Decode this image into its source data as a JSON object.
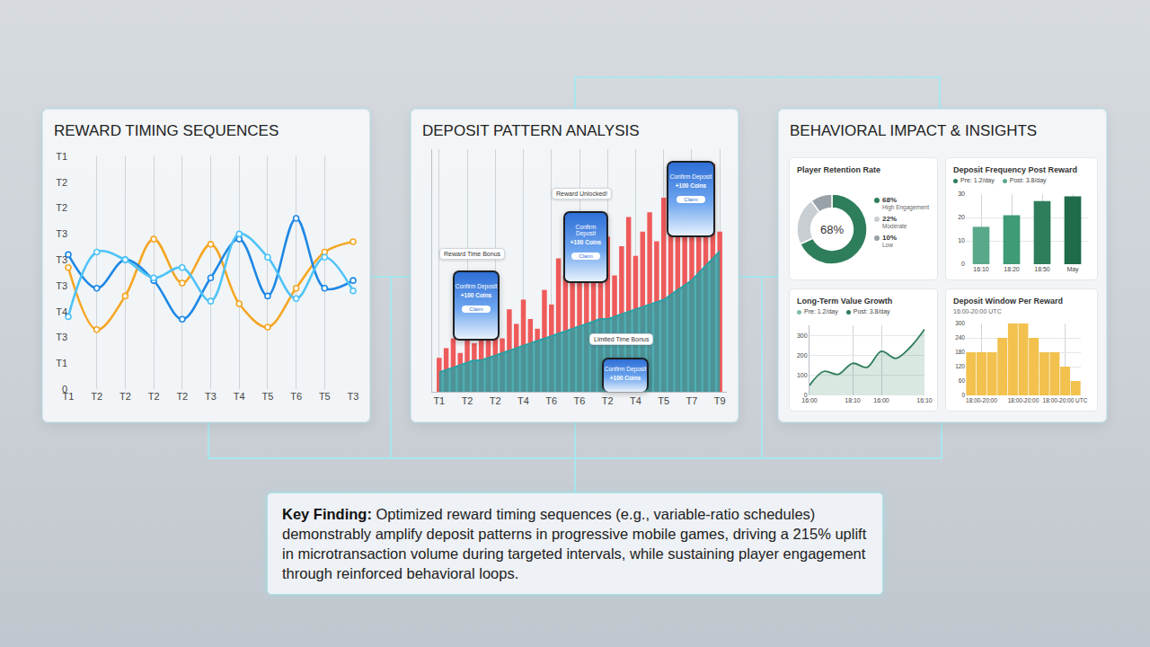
{
  "panels": [
    {
      "title": "REWARD TIMING SEQUENCES"
    },
    {
      "title": "DEPOSIT PATTERN ANALYSIS"
    },
    {
      "title": "BEHAVIORAL IMPACT & INSIGHTS"
    }
  ],
  "key_finding": {
    "label": "Key Finding:",
    "text": "Optimized reward timing sequences (e.g., variable-ratio schedules) demonstrably amplify deposit patterns in progressive mobile games, driving a 215% uplift in microtransaction volume during targeted intervals, while sustaining player engagement through reinforced behavioral loops."
  },
  "chart_data": [
    {
      "type": "line",
      "categories": [
        "T1",
        "T2",
        "T2",
        "T2",
        "T2",
        "T3",
        "T4",
        "T5",
        "T6",
        "T5",
        "T3"
      ],
      "series": [
        {
          "color": "#f5a623",
          "marker": "circle",
          "values": [
            4.7,
            2.3,
            3.6,
            5.8,
            4.1,
            5.6,
            3.3,
            2.4,
            3.9,
            5.3,
            5.7
          ]
        },
        {
          "color": "#1e88e5",
          "marker": "circle",
          "values": [
            5.2,
            3.9,
            5.0,
            4.2,
            2.7,
            4.3,
            5.8,
            3.6,
            6.6,
            3.9,
            4.2
          ]
        },
        {
          "color": "#4fc3f7",
          "marker": "circle",
          "values": [
            2.8,
            5.3,
            5.0,
            4.3,
            4.7,
            3.4,
            6.0,
            5.1,
            3.5,
            5.1,
            3.8
          ]
        }
      ],
      "ylim": [
        0,
        9
      ],
      "yticks": [
        0,
        {
          "value": 1,
          "label": "T1"
        },
        {
          "value": 2,
          "label": "T3"
        },
        {
          "value": 3,
          "label": "T4"
        },
        {
          "value": 4,
          "label": "T3"
        },
        {
          "value": 5,
          "label": "T3"
        },
        {
          "value": 6,
          "label": "T3"
        },
        {
          "value": 7,
          "label": "T2"
        },
        {
          "value": 8,
          "label": "T2"
        },
        {
          "value": 9,
          "label": "T1"
        }
      ],
      "grid": "x"
    },
    {
      "type": "bar",
      "x": [
        1,
        2,
        3,
        4,
        5,
        6,
        7,
        8,
        9,
        10,
        11,
        12,
        13,
        14,
        15,
        16,
        17,
        18,
        19,
        20,
        21,
        22,
        23,
        24,
        25,
        26,
        27,
        28,
        29,
        30,
        31,
        32,
        33,
        34,
        35,
        36,
        37,
        38,
        39,
        40,
        41
      ],
      "xlim": [
        0,
        42
      ],
      "xticks": [
        {
          "value": 1,
          "label": "T1"
        },
        {
          "value": 5,
          "label": "T2"
        },
        {
          "value": 9,
          "label": "T2"
        },
        {
          "value": 13,
          "label": "T4"
        },
        {
          "value": 17,
          "label": "T6"
        },
        {
          "value": 21,
          "label": "T6"
        },
        {
          "value": 25,
          "label": "T2"
        },
        {
          "value": 29,
          "label": "T4"
        },
        {
          "value": 33,
          "label": "T5"
        },
        {
          "value": 37,
          "label": "T7"
        },
        {
          "value": 41,
          "label": "T9"
        }
      ],
      "ylim": [
        0,
        100
      ],
      "tick_labels": "x",
      "grid": "x",
      "series": [
        {
          "type": "bar",
          "color": "#ef5a5a",
          "values": [
            14,
            18,
            22,
            16,
            25,
            20,
            28,
            24,
            30,
            22,
            34,
            28,
            38,
            30,
            26,
            42,
            36,
            55,
            48,
            62,
            45,
            58,
            70,
            52,
            64,
            48,
            60,
            72,
            56,
            66,
            74,
            62,
            80,
            68,
            76,
            85,
            72,
            90,
            78,
            94,
            66
          ]
        },
        {
          "type": "area",
          "color": "#2a9fa3",
          "values": [
            8,
            9,
            10,
            11,
            12,
            13,
            13,
            14,
            15,
            16,
            17,
            18,
            19,
            20,
            21,
            22,
            23,
            24,
            25,
            26,
            27,
            28,
            29,
            30,
            30,
            31,
            32,
            33,
            34,
            35,
            36,
            37,
            38,
            40,
            42,
            44,
            46,
            49,
            52,
            55,
            58
          ]
        }
      ],
      "annotations": [
        {
          "text": "Reward Time Bonus"
        },
        {
          "text": "Reward Unlocked!"
        },
        {
          "text": "Limited Time Bonus"
        }
      ],
      "phones": [
        {
          "heading": "Confirm Deposit",
          "amount": "+100 Coins",
          "button": "Claim"
        },
        {
          "heading": "Confirm Deposit",
          "amount": "+100 Coins",
          "button": "Claim"
        },
        {
          "heading": "Confirm Deposit",
          "amount": "+100 Coins",
          "button": "Claim"
        },
        {
          "heading": "Confirm Deposit",
          "amount": "+100 Coins"
        }
      ]
    },
    {
      "type": "pie",
      "title": "Player Retention Rate",
      "categories": [
        "High Engagement",
        "Moderate",
        "Low"
      ],
      "values": [
        68,
        22,
        10
      ],
      "value_labels": [
        "68%",
        "22%",
        "10%"
      ],
      "colors": [
        "#2e7d5b",
        "#c9ced2",
        "#98a2a8"
      ],
      "center_text": "68%"
    },
    {
      "type": "bar",
      "title": "Deposit Frequency Post Reward",
      "legend_entries": [
        {
          "text": "Pre: 1.2/day",
          "color": "#2e7d5b"
        },
        {
          "text": "Post: 3.8/day",
          "color": "#5aa88a"
        }
      ],
      "categories": [
        "16:10",
        "18:20",
        "18:50",
        "May"
      ],
      "values": [
        16,
        21,
        27,
        29
      ],
      "colors": [
        "#5aa88a",
        "#3f9a76",
        "#2e7d5b",
        "#1f6b4a"
      ],
      "ylim": [
        0,
        30
      ],
      "yticks": [
        0,
        10,
        20,
        30
      ],
      "grid": true
    },
    {
      "type": "area",
      "title": "Long-Term Value Growth",
      "legend_entries": [
        {
          "text": "Pre: 1.2/day",
          "color": "#7fbf9f"
        },
        {
          "text": "Post: 3.8/day",
          "color": "#2e7d5b"
        }
      ],
      "categories": [
        "16:00",
        null,
        null,
        "18:10",
        null,
        "16:00",
        null,
        null,
        "16:10"
      ],
      "values": [
        50,
        120,
        105,
        160,
        140,
        220,
        185,
        240,
        330
      ],
      "color": "#2e7d5b",
      "ylim": [
        0,
        350
      ],
      "yticks": [
        0,
        100,
        200,
        300
      ],
      "grid": true
    },
    {
      "type": "bar",
      "title": "Deposit Window Per Reward",
      "subtitle": "16:00-20:00 UTC",
      "categories": [
        null,
        "18:00-20:00",
        null,
        null,
        null,
        "18:00-20:00",
        null,
        null,
        null,
        "18:00-20:00 UTC",
        null
      ],
      "values": [
        180,
        180,
        180,
        240,
        300,
        300,
        240,
        180,
        180,
        120,
        60
      ],
      "color": "#f2c14e",
      "ylim": [
        0,
        300
      ],
      "yticks": [
        0,
        60,
        120,
        180,
        240,
        300
      ],
      "grid": true
    }
  ]
}
